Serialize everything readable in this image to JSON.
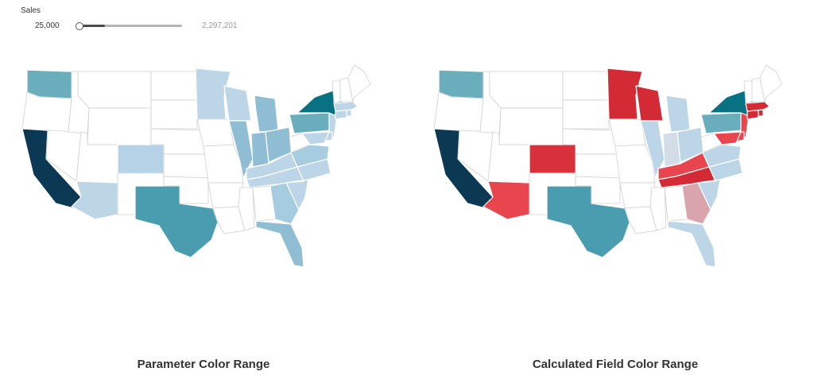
{
  "filter": {
    "title": "Sales",
    "min_label": "25,000",
    "max_label": "2,297,201",
    "selected_fraction_low": 0.0,
    "selected_fraction_high": 0.25
  },
  "maps": [
    {
      "title": "Parameter Color Range",
      "states": {
        "WA": "#6aaebe",
        "OR": "#ffffff",
        "CA": "#0b3954",
        "NV": "#ffffff",
        "ID": "#ffffff",
        "MT": "#ffffff",
        "WY": "#ffffff",
        "UT": "#ffffff",
        "AZ": "#bdd6e6",
        "CO": "#b5d2e6",
        "NM": "#ffffff",
        "TX": "#4a9daf",
        "ND": "#ffffff",
        "SD": "#ffffff",
        "NE": "#ffffff",
        "KS": "#ffffff",
        "OK": "#ffffff",
        "MN": "#bcd6e8",
        "IA": "#ffffff",
        "MO": "#ffffff",
        "AR": "#ffffff",
        "LA": "#ffffff",
        "WI": "#bcd6e8",
        "IL": "#8fbdd3",
        "MI": "#8fbdd3",
        "IN": "#8fbdd3",
        "OH": "#8fbdd3",
        "KY": "#bcd6e8",
        "TN": "#bcd6e8",
        "MS": "#ffffff",
        "AL": "#ffffff",
        "GA": "#a6cce0",
        "FL": "#8fbdd3",
        "SC": "#bcd6e8",
        "NC": "#bcd6e8",
        "VA": "#a6cce0",
        "WV": "#ffffff",
        "PA": "#6aaebe",
        "NY": "#087182",
        "NJ": "#bcd6e8",
        "DE": "#bcd6e8",
        "MD": "#bcd6e8",
        "CT": "#bcd6e8",
        "RI": "#bcd6e8",
        "MA": "#bcd6e8",
        "VT": "#ffffff",
        "NH": "#ffffff",
        "ME": "#ffffff"
      }
    },
    {
      "title": "Calculated Field Color Range",
      "states": {
        "WA": "#6aaebe",
        "OR": "#ffffff",
        "CA": "#0b3954",
        "NV": "#ffffff",
        "ID": "#ffffff",
        "MT": "#ffffff",
        "WY": "#ffffff",
        "UT": "#ffffff",
        "AZ": "#e8454e",
        "CO": "#d9313b",
        "NM": "#ffffff",
        "TX": "#4a9daf",
        "ND": "#ffffff",
        "SD": "#ffffff",
        "NE": "#ffffff",
        "KS": "#ffffff",
        "OK": "#ffffff",
        "MN": "#d42a35",
        "IA": "#ffffff",
        "MO": "#ffffff",
        "AR": "#ffffff",
        "LA": "#ffffff",
        "WI": "#d42a35",
        "IL": "#bcd6e8",
        "MI": "#bcd6e8",
        "IN": "#d3dde8",
        "OH": "#bcd6e8",
        "KY": "#e8454e",
        "TN": "#d42a35",
        "MS": "#ffffff",
        "AL": "#ffffff",
        "GA": "#d9a4ab",
        "FL": "#bcd6e8",
        "SC": "#bcd6e8",
        "NC": "#bcd6e8",
        "VA": "#bcd6e8",
        "WV": "#ffffff",
        "PA": "#6aaebe",
        "NY": "#087182",
        "NJ": "#e8454e",
        "DE": "#e8454e",
        "MD": "#e8454e",
        "CT": "#d42a35",
        "RI": "#d42a35",
        "MA": "#d42a35",
        "VT": "#ffffff",
        "NH": "#ffffff",
        "ME": "#ffffff"
      }
    }
  ]
}
